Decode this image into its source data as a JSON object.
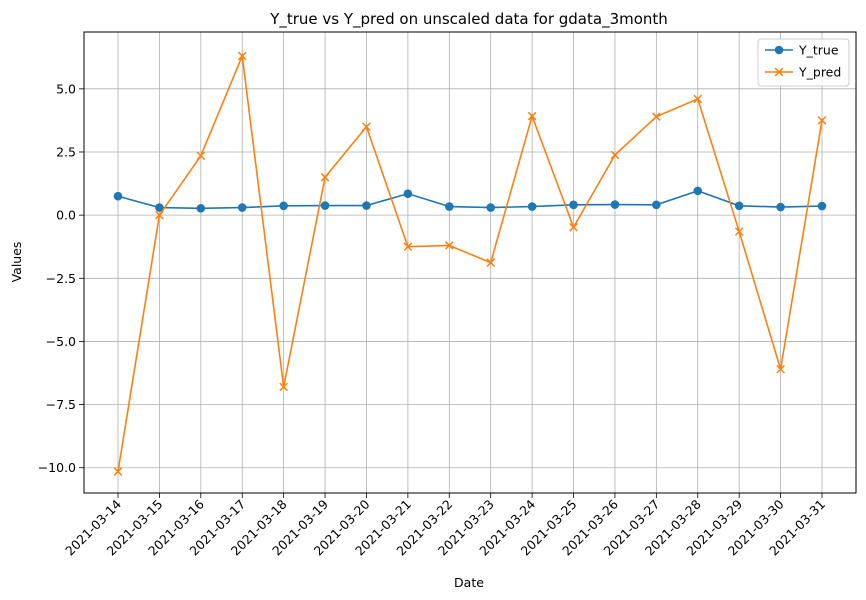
{
  "chart_data": {
    "type": "line",
    "title": "Y_true vs Y_pred on unscaled data for gdata_3month",
    "xlabel": "Date",
    "ylabel": "Values",
    "x": [
      "2021-03-14",
      "2021-03-15",
      "2021-03-16",
      "2021-03-17",
      "2021-03-18",
      "2021-03-19",
      "2021-03-20",
      "2021-03-21",
      "2021-03-22",
      "2021-03-23",
      "2021-03-24",
      "2021-03-25",
      "2021-03-26",
      "2021-03-27",
      "2021-03-28",
      "2021-03-29",
      "2021-03-30",
      "2021-03-31"
    ],
    "series": [
      {
        "name": "Y_true",
        "color": "#1f77b4",
        "marker": "circle",
        "values": [
          0.75,
          0.3,
          0.27,
          0.3,
          0.37,
          0.38,
          0.38,
          0.85,
          0.34,
          0.3,
          0.34,
          0.41,
          0.42,
          0.41,
          0.96,
          0.37,
          0.32,
          0.36
        ]
      },
      {
        "name": "Y_pred",
        "color": "#ff7f0e",
        "marker": "x",
        "values": [
          -10.15,
          0.0,
          2.35,
          6.3,
          -6.8,
          1.5,
          3.5,
          -1.25,
          -1.2,
          -1.88,
          3.92,
          -0.48,
          2.38,
          3.9,
          4.6,
          -0.65,
          -6.1,
          3.75
        ]
      }
    ],
    "ylim": [
      -11.0,
      7.25
    ],
    "yticks": [
      -10.0,
      -7.5,
      -5.0,
      -2.5,
      0.0,
      2.5,
      5.0
    ],
    "ytick_labels": [
      "−10.0",
      "−7.5",
      "−5.0",
      "−2.5",
      "0.0",
      "2.5",
      "5.0"
    ],
    "grid": true,
    "legend_position": "top-right"
  }
}
